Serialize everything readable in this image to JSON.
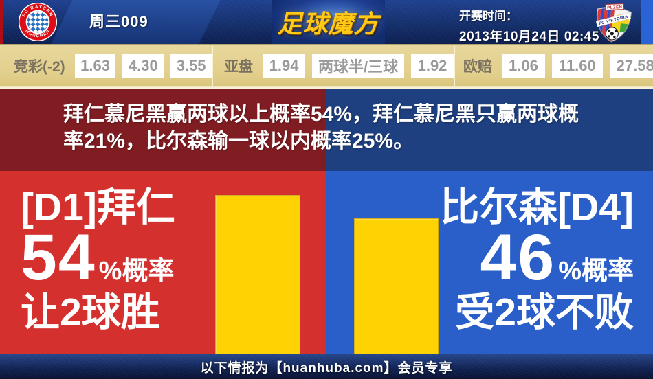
{
  "header": {
    "match_code": "周三009",
    "brand": "足球魔方",
    "kickoff_label": "开赛时间：",
    "kickoff_value": "2013年10月24日 02:45",
    "home_crest_top": "FC BAYERN",
    "home_crest_bottom": "MÜNCHEN",
    "away_banner": "PLZEN",
    "away_band": "FC VIKTORIA"
  },
  "odds": {
    "sections": [
      {
        "label": "竞彩(-2)",
        "values": [
          "1.63",
          "4.30",
          "3.55"
        ]
      },
      {
        "label": "亚盘",
        "values": [
          "1.94",
          "两球半/三球",
          "1.92"
        ]
      },
      {
        "label": "欧赔",
        "values": [
          "1.06",
          "11.60",
          "27.58"
        ]
      }
    ]
  },
  "summary": {
    "line1": "拜仁慕尼黑赢两球以上概率54%，拜仁慕尼黑只赢两球概",
    "line2": "率21%，比尔森输一球以内概率25%。"
  },
  "panels": {
    "left": {
      "team": "[D1]拜仁",
      "percent": 54,
      "suffix": "%概率",
      "outcome": "让2球胜"
    },
    "right": {
      "team": "比尔森[D4]",
      "percent": 46,
      "suffix": "%概率",
      "outcome": "受2球不败"
    }
  },
  "chart_data": {
    "type": "bar",
    "categories": [
      "拜仁 让2球胜",
      "比尔森 受2球不败"
    ],
    "values": [
      54,
      46
    ],
    "unit": "%",
    "bar_color": "#ffd303",
    "ylim": [
      0,
      100
    ]
  },
  "footer": {
    "text": "以下情报为【huanhuba.com】会员专享"
  },
  "colors": {
    "panel_red": "#d4302e",
    "panel_blue": "#2a5ec8",
    "band_red": "#801d22",
    "band_blue": "#1e4080",
    "bar_yellow": "#ffd303",
    "odds_bg": "#e2cf8c",
    "brand_gold": "#ffc915"
  }
}
